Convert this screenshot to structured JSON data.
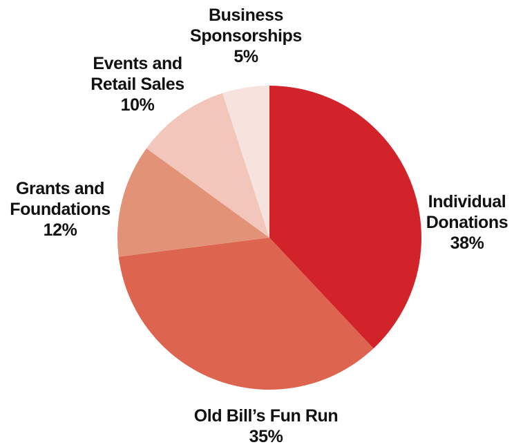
{
  "chart_data": {
    "type": "pie",
    "start": "12 o'clock",
    "direction": "clockwise",
    "slices": [
      {
        "label_lines": [
          "Individual",
          "Donations"
        ],
        "percent_label": "38%",
        "value": 38,
        "color": "#d2232a"
      },
      {
        "label_lines": [
          "Old Bill’s Fun Run"
        ],
        "percent_label": "35%",
        "value": 35,
        "color": "#dd644e"
      },
      {
        "label_lines": [
          "Grants and",
          "Foundations"
        ],
        "percent_label": "12%",
        "value": 12,
        "color": "#e29277"
      },
      {
        "label_lines": [
          "Events and",
          "Retail Sales"
        ],
        "percent_label": "10%",
        "value": 10,
        "color": "#f2c6bb"
      },
      {
        "label_lines": [
          "Business",
          "Sponsorships"
        ],
        "percent_label": "5%",
        "value": 5,
        "color": "#f7e3de"
      }
    ]
  }
}
